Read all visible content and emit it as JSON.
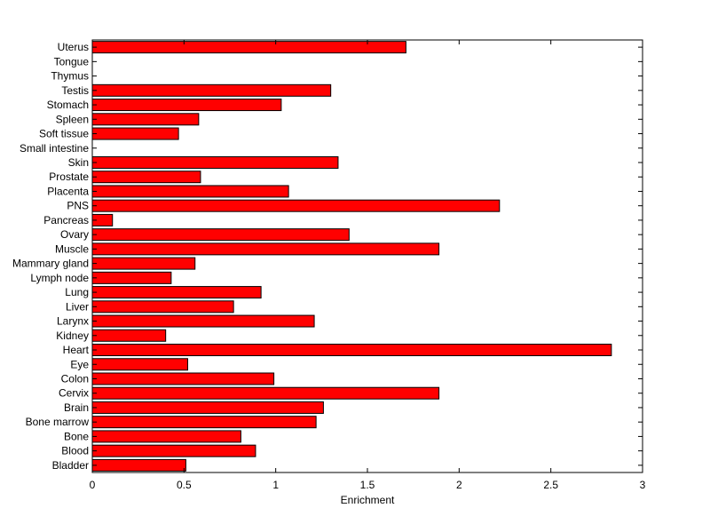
{
  "chart_data": {
    "type": "bar",
    "orientation": "horizontal",
    "xlabel": "Enrichment",
    "ylabel": "",
    "title": "",
    "xlim": [
      0,
      3
    ],
    "xticks": [
      "0",
      "0.5",
      "1",
      "1.5",
      "2",
      "2.5",
      "3"
    ],
    "grid": false,
    "legend": "none",
    "bar_color": "#ff0000",
    "edge_color": "#000000",
    "categories": [
      "Uterus",
      "Tongue",
      "Thymus",
      "Testis",
      "Stomach",
      "Spleen",
      "Soft tissue",
      "Small intestine",
      "Skin",
      "Prostate",
      "Placenta",
      "PNS",
      "Pancreas",
      "Ovary",
      "Muscle",
      "Mammary gland",
      "Lymph node",
      "Lung",
      "Liver",
      "Larynx",
      "Kidney",
      "Heart",
      "Eye",
      "Colon",
      "Cervix",
      "Brain",
      "Bone marrow",
      "Bone",
      "Blood",
      "Bladder"
    ],
    "values": [
      1.71,
      0,
      0,
      1.3,
      1.03,
      0.58,
      0.47,
      0,
      1.34,
      0.59,
      1.07,
      2.22,
      0.11,
      1.4,
      1.89,
      0.56,
      0.43,
      0.92,
      0.77,
      1.21,
      0.4,
      2.83,
      0.52,
      0.99,
      1.89,
      1.26,
      1.22,
      0.81,
      0.89,
      0.51
    ]
  }
}
